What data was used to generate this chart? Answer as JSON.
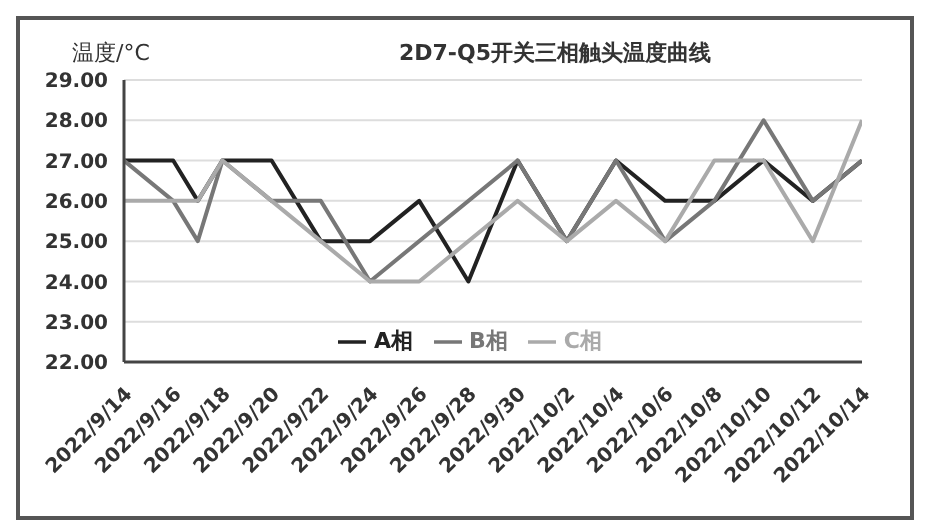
{
  "chart_data": {
    "type": "line",
    "title": "2D7-Q5开关三相触头温度曲线",
    "ylabel": "温度/°C",
    "xlim": [
      "2022-09-14",
      "2022-10-14"
    ],
    "xticks": [
      {
        "value": "2022-09-14",
        "label": "2022/9/14"
      },
      {
        "value": "2022-09-16",
        "label": "2022/9/16"
      },
      {
        "value": "2022-09-18",
        "label": "2022/9/18"
      },
      {
        "value": "2022-09-20",
        "label": "2022/9/20"
      },
      {
        "value": "2022-09-22",
        "label": "2022/9/22"
      },
      {
        "value": "2022-09-24",
        "label": "2022/9/24"
      },
      {
        "value": "2022-09-26",
        "label": "2022/9/26"
      },
      {
        "value": "2022-09-28",
        "label": "2022/9/28"
      },
      {
        "value": "2022-09-30",
        "label": "2022/9/30"
      },
      {
        "value": "2022-10-02",
        "label": "2022/10/2"
      },
      {
        "value": "2022-10-04",
        "label": "2022/10/4"
      },
      {
        "value": "2022-10-06",
        "label": "2022/10/6"
      },
      {
        "value": "2022-10-08",
        "label": "2022/10/8"
      },
      {
        "value": "2022-10-10",
        "label": "2022/10/10"
      },
      {
        "value": "2022-10-12",
        "label": "2022/10/12"
      },
      {
        "value": "2022-10-14",
        "label": "2022/10/14"
      }
    ],
    "ylim": [
      22,
      29
    ],
    "yticks": [
      {
        "value": 22,
        "label": "22.00"
      },
      {
        "value": 23,
        "label": "23.00"
      },
      {
        "value": 24,
        "label": "24.00"
      },
      {
        "value": 25,
        "label": "25.00"
      },
      {
        "value": 26,
        "label": "26.00"
      },
      {
        "value": 27,
        "label": "27.00"
      },
      {
        "value": 28,
        "label": "28.00"
      },
      {
        "value": 29,
        "label": "29.00"
      }
    ],
    "grid": "y",
    "legend": "bottom",
    "marker": "none",
    "line_style": "solid",
    "series": [
      {
        "name": "A相",
        "color": "#222222",
        "x": [
          "2022-09-14",
          "2022-09-16",
          "2022-09-17",
          "2022-09-18",
          "2022-09-20",
          "2022-09-22",
          "2022-09-24",
          "2022-09-26",
          "2022-09-28",
          "2022-09-30",
          "2022-10-02",
          "2022-10-04",
          "2022-10-06",
          "2022-10-08",
          "2022-10-10",
          "2022-10-12",
          "2022-10-14"
        ],
        "values": [
          27,
          27,
          26,
          27,
          27,
          25,
          25,
          26,
          24,
          27,
          25,
          27,
          26,
          26,
          27,
          26,
          27
        ]
      },
      {
        "name": "B相",
        "color": "#777777",
        "x": [
          "2022-09-14",
          "2022-09-16",
          "2022-09-17",
          "2022-09-18",
          "2022-09-20",
          "2022-09-22",
          "2022-09-24",
          "2022-09-30",
          "2022-10-02",
          "2022-10-04",
          "2022-10-06",
          "2022-10-08",
          "2022-10-10",
          "2022-10-12",
          "2022-10-14"
        ],
        "values": [
          27,
          26,
          25,
          27,
          26,
          26,
          24,
          27,
          25,
          27,
          25,
          26,
          28,
          26,
          27
        ]
      },
      {
        "name": "C相",
        "color": "#aaaaaa",
        "x": [
          "2022-09-14",
          "2022-09-17",
          "2022-09-18",
          "2022-09-20",
          "2022-09-22",
          "2022-09-24",
          "2022-09-26",
          "2022-09-30",
          "2022-10-02",
          "2022-10-04",
          "2022-10-06",
          "2022-10-08",
          "2022-10-10",
          "2022-10-12",
          "2022-10-14"
        ],
        "values": [
          26,
          26,
          27,
          26,
          25,
          24,
          24,
          26,
          25,
          26,
          25,
          27,
          27,
          25,
          28
        ]
      }
    ]
  }
}
